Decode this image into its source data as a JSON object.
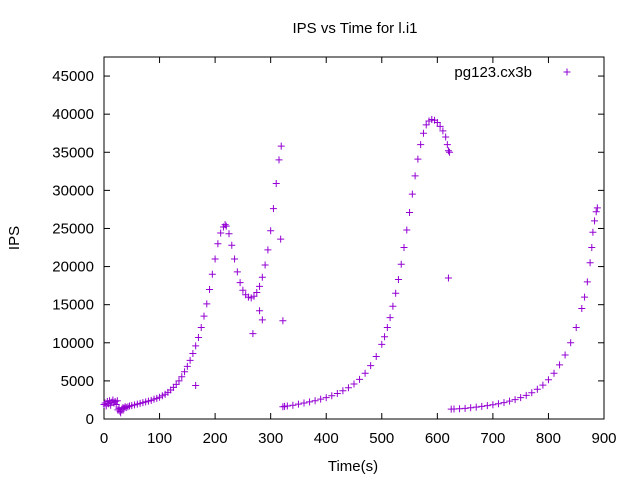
{
  "chart_data": {
    "type": "scatter",
    "title": "IPS vs Time for l.i1",
    "xlabel": "Time(s)",
    "ylabel": "IPS",
    "xlim": [
      0,
      900
    ],
    "ylim": [
      0,
      47500
    ],
    "xticks": [
      0,
      100,
      200,
      300,
      400,
      500,
      600,
      700,
      800,
      900
    ],
    "yticks": [
      0,
      5000,
      10000,
      15000,
      20000,
      25000,
      30000,
      35000,
      40000,
      45000
    ],
    "grid": false,
    "legend": "top-right",
    "marker": "plus",
    "series": [
      {
        "name": "pg123.cx3b",
        "color": "#9400d3",
        "points": [
          [
            0,
            1900
          ],
          [
            2,
            2100
          ],
          [
            4,
            1700
          ],
          [
            6,
            2300
          ],
          [
            8,
            2000
          ],
          [
            10,
            2400
          ],
          [
            12,
            1800
          ],
          [
            14,
            2200
          ],
          [
            16,
            2500
          ],
          [
            18,
            2100
          ],
          [
            20,
            2300
          ],
          [
            22,
            1900
          ],
          [
            24,
            2400
          ],
          [
            25,
            1200
          ],
          [
            27,
            1400
          ],
          [
            29,
            1000
          ],
          [
            30,
            800
          ],
          [
            32,
            1300
          ],
          [
            34,
            1500
          ],
          [
            36,
            1400
          ],
          [
            38,
            1600
          ],
          [
            40,
            1500
          ],
          [
            43,
            1600
          ],
          [
            46,
            1700
          ],
          [
            50,
            1750
          ],
          [
            55,
            1850
          ],
          [
            60,
            1950
          ],
          [
            65,
            2050
          ],
          [
            70,
            2150
          ],
          [
            75,
            2250
          ],
          [
            80,
            2350
          ],
          [
            85,
            2450
          ],
          [
            90,
            2600
          ],
          [
            95,
            2700
          ],
          [
            100,
            2850
          ],
          [
            105,
            3050
          ],
          [
            110,
            3250
          ],
          [
            115,
            3500
          ],
          [
            120,
            3800
          ],
          [
            125,
            4150
          ],
          [
            130,
            4550
          ],
          [
            135,
            5000
          ],
          [
            140,
            5550
          ],
          [
            145,
            6200
          ],
          [
            150,
            6900
          ],
          [
            155,
            7700
          ],
          [
            160,
            8600
          ],
          [
            165,
            9600
          ],
          [
            170,
            10700
          ],
          [
            175,
            12000
          ],
          [
            180,
            13500
          ],
          [
            185,
            15100
          ],
          [
            190,
            17000
          ],
          [
            195,
            19000
          ],
          [
            200,
            21000
          ],
          [
            205,
            23000
          ],
          [
            210,
            24400
          ],
          [
            215,
            25200
          ],
          [
            218,
            25500
          ],
          [
            220,
            25300
          ],
          [
            225,
            24300
          ],
          [
            230,
            22800
          ],
          [
            235,
            21000
          ],
          [
            240,
            19300
          ],
          [
            245,
            17900
          ],
          [
            250,
            16900
          ],
          [
            255,
            16300
          ],
          [
            260,
            16000
          ],
          [
            265,
            15900
          ],
          [
            270,
            16100
          ],
          [
            275,
            16600
          ],
          [
            280,
            17400
          ],
          [
            285,
            18600
          ],
          [
            290,
            20200
          ],
          [
            295,
            22200
          ],
          [
            300,
            24700
          ],
          [
            305,
            27600
          ],
          [
            310,
            30900
          ],
          [
            315,
            34000
          ],
          [
            319,
            35800
          ],
          [
            165,
            4400
          ],
          [
            268,
            11200
          ],
          [
            280,
            14200
          ],
          [
            285,
            13000
          ],
          [
            318,
            23600
          ],
          [
            322,
            12900
          ],
          [
            322,
            1600
          ],
          [
            325,
            1650
          ],
          [
            330,
            1700
          ],
          [
            340,
            1800
          ],
          [
            350,
            1950
          ],
          [
            360,
            2100
          ],
          [
            370,
            2250
          ],
          [
            380,
            2400
          ],
          [
            390,
            2600
          ],
          [
            400,
            2800
          ],
          [
            410,
            3050
          ],
          [
            420,
            3350
          ],
          [
            430,
            3700
          ],
          [
            440,
            4100
          ],
          [
            450,
            4600
          ],
          [
            460,
            5200
          ],
          [
            470,
            6000
          ],
          [
            480,
            7000
          ],
          [
            490,
            8200
          ],
          [
            500,
            9800
          ],
          [
            505,
            10800
          ],
          [
            510,
            12000
          ],
          [
            515,
            13300
          ],
          [
            520,
            14800
          ],
          [
            525,
            16500
          ],
          [
            530,
            18300
          ],
          [
            535,
            20300
          ],
          [
            540,
            22500
          ],
          [
            545,
            24800
          ],
          [
            550,
            27100
          ],
          [
            555,
            29500
          ],
          [
            560,
            31900
          ],
          [
            565,
            34100
          ],
          [
            570,
            36000
          ],
          [
            575,
            37500
          ],
          [
            580,
            38600
          ],
          [
            585,
            39100
          ],
          [
            590,
            39300
          ],
          [
            595,
            39200
          ],
          [
            600,
            38900
          ],
          [
            605,
            38400
          ],
          [
            610,
            37800
          ],
          [
            615,
            37000
          ],
          [
            618,
            36000
          ],
          [
            620,
            35200
          ],
          [
            622,
            35000
          ],
          [
            620,
            18500
          ],
          [
            625,
            1300
          ],
          [
            630,
            1320
          ],
          [
            640,
            1350
          ],
          [
            650,
            1400
          ],
          [
            660,
            1480
          ],
          [
            670,
            1560
          ],
          [
            680,
            1650
          ],
          [
            690,
            1750
          ],
          [
            700,
            1870
          ],
          [
            710,
            2000
          ],
          [
            720,
            2150
          ],
          [
            730,
            2350
          ],
          [
            740,
            2550
          ],
          [
            750,
            2800
          ],
          [
            760,
            3100
          ],
          [
            770,
            3450
          ],
          [
            780,
            3900
          ],
          [
            790,
            4450
          ],
          [
            800,
            5150
          ],
          [
            810,
            6000
          ],
          [
            820,
            7100
          ],
          [
            830,
            8400
          ],
          [
            840,
            10000
          ],
          [
            850,
            12000
          ],
          [
            860,
            14500
          ],
          [
            865,
            16000
          ],
          [
            870,
            18000
          ],
          [
            875,
            20500
          ],
          [
            878,
            22500
          ],
          [
            880,
            24500
          ],
          [
            883,
            26000
          ],
          [
            886,
            27200
          ],
          [
            888,
            27700
          ]
        ]
      }
    ]
  }
}
